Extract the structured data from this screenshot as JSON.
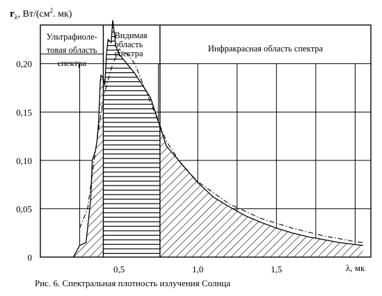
{
  "chart_data": {
    "type": "area",
    "ylabel_symbol": "r",
    "ylabel_subscript": "λ",
    "ylabel_unit_pre": ", Вт/(см",
    "ylabel_unit_sup": "2",
    "ylabel_unit_post": ". мк)",
    "xlabel": "λ, мк",
    "caption": "Рис. 6.  Спектральная плотность излучения Солнца",
    "xlim": [
      0,
      2.1
    ],
    "ylim": [
      0,
      0.24
    ],
    "x_ticks": [
      {
        "value": 0.5,
        "label": "0,5"
      },
      {
        "value": 1.0,
        "label": "1,0"
      },
      {
        "value": 1.5,
        "label": "1,5"
      }
    ],
    "y_ticks": [
      {
        "value": 0,
        "label": "0"
      },
      {
        "value": 0.05,
        "label": "0,05"
      },
      {
        "value": 0.1,
        "label": "0,10"
      },
      {
        "value": 0.15,
        "label": "0,15"
      },
      {
        "value": 0.2,
        "label": "0,20"
      }
    ],
    "grid": true,
    "regions": [
      {
        "name": "uv",
        "label_lines": [
          "Ультрафиоле-",
          "товая область",
          "спектра"
        ],
        "x_start": 0,
        "x_end": 0.4
      },
      {
        "name": "visible",
        "label_lines": [
          "Видимая",
          "область",
          "спектра"
        ],
        "x_start": 0.4,
        "x_end": 0.76
      },
      {
        "name": "ir",
        "label_lines": [
          "Инфракрасная область спектра"
        ],
        "x_start": 0.76,
        "x_end": 2.1
      }
    ],
    "series": [
      {
        "style": "solid-hatched",
        "x": [
          0.21,
          0.25,
          0.29,
          0.3,
          0.32,
          0.33,
          0.35,
          0.36,
          0.37,
          0.38,
          0.385,
          0.4,
          0.41,
          0.42,
          0.43,
          0.45,
          0.46,
          0.48,
          0.5,
          0.55,
          0.6,
          0.7,
          0.76,
          0.8,
          0.9,
          1.0,
          1.1,
          1.2,
          1.3,
          1.4,
          1.5,
          1.6,
          1.7,
          1.8,
          1.9,
          2.05
        ],
        "y": [
          0.0,
          0.012,
          0.015,
          0.03,
          0.06,
          0.1,
          0.11,
          0.12,
          0.14,
          0.18,
          0.188,
          0.185,
          0.178,
          0.21,
          0.225,
          0.222,
          0.245,
          0.218,
          0.21,
          0.2,
          0.19,
          0.165,
          0.135,
          0.115,
          0.096,
          0.077,
          0.062,
          0.052,
          0.043,
          0.036,
          0.03,
          0.025,
          0.021,
          0.018,
          0.015,
          0.012
        ]
      },
      {
        "style": "dash-dot",
        "x": [
          0.25,
          0.3,
          0.35,
          0.4,
          0.45,
          0.5,
          0.55,
          0.6,
          0.7,
          0.8,
          0.9,
          1.0,
          1.2,
          1.4,
          1.6,
          1.8,
          2.0,
          2.05
        ],
        "y": [
          0.03,
          0.05,
          0.11,
          0.165,
          0.195,
          0.215,
          0.21,
          0.2,
          0.16,
          0.12,
          0.095,
          0.078,
          0.055,
          0.04,
          0.03,
          0.022,
          0.016,
          0.015
        ]
      }
    ],
    "colors": {
      "ink": "#000000",
      "background": "#ffffff"
    }
  }
}
